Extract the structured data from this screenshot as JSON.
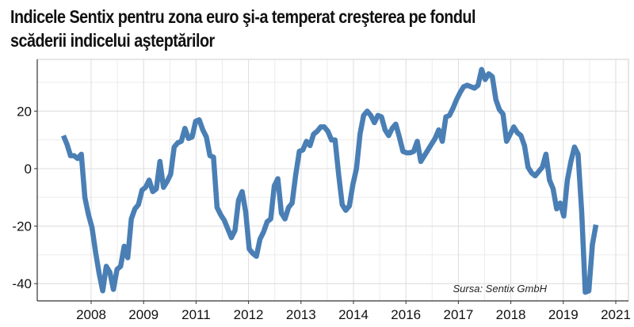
{
  "title": {
    "line1": "Indicele Sentix pentru zona euro şi-a temperat creşterea pe fondul",
    "line2": "scăderii indicelui aşteptărilor"
  },
  "source": "Sursa: Sentix GmbH",
  "colors": {
    "line": "#4a7fb5",
    "grid": "#dddddd",
    "axis": "#333333"
  },
  "chart_data": {
    "type": "line",
    "title": "Indicele Sentix pentru zona euro şi-a temperat creşterea pe fondul scăderii indicelui aşteptărilor",
    "xlabel": "",
    "ylabel": "",
    "ylim": [
      -46,
      38
    ],
    "yticks": [
      -40,
      -20,
      0,
      20
    ],
    "ytick_labels": [
      "-40",
      "-20",
      "0",
      "20"
    ],
    "xtick_labels": [
      "2008",
      "2009",
      "2011",
      "2012",
      "2013",
      "2014",
      "2016",
      "2017",
      "2018",
      "2019",
      "2021"
    ],
    "grid": true,
    "legend": "none",
    "series": [
      {
        "values": [
          11.5,
          8.5,
          4.5,
          4.5,
          3.5,
          5.0,
          -10.0,
          -16.0,
          -20.5,
          -29.0,
          -36.5,
          -42.5,
          -34.0,
          -36.0,
          -42.0,
          -35.0,
          -34.0,
          -27.0,
          -31.0,
          -17.5,
          -14.0,
          -12.5,
          -7.5,
          -6.5,
          -4.0,
          -8.0,
          -7.0,
          2.5,
          -6.5,
          -4.5,
          -2.0,
          7.5,
          9.0,
          9.5,
          14.0,
          10.5,
          11.0,
          16.5,
          17.0,
          13.5,
          11.0,
          4.5,
          4.0,
          -13.5,
          -16.0,
          -18.0,
          -21.0,
          -24.0,
          -21.5,
          -11.0,
          -8.0,
          -15.0,
          -28.0,
          -29.5,
          -30.5,
          -24.5,
          -22.0,
          -18.5,
          -17.5,
          -6.0,
          -3.5,
          -15.5,
          -17.5,
          -13.5,
          -12.0,
          -2.0,
          6.0,
          6.5,
          9.5,
          8.0,
          12.0,
          13.0,
          14.5,
          14.5,
          13.0,
          10.0,
          10.0,
          -2.0,
          -12.5,
          -14.5,
          -13.0,
          -5.5,
          0.0,
          12.0,
          18.5,
          20.0,
          18.5,
          16.0,
          18.5,
          18.0,
          13.5,
          11.5,
          14.0,
          15.5,
          11.0,
          6.0,
          5.5,
          5.5,
          6.0,
          9.5,
          2.5,
          4.5,
          6.5,
          8.5,
          10.5,
          13.5,
          9.5,
          18.0,
          18.5,
          21.0,
          24.0,
          26.5,
          28.5,
          29.0,
          28.5,
          28.0,
          29.0,
          34.5,
          31.0,
          33.0,
          32.0,
          24.0,
          20.5,
          19.0,
          9.5,
          12.0,
          14.5,
          12.5,
          11.5,
          8.0,
          0.5,
          -1.5,
          -2.5,
          -1.0,
          0.5,
          5.0,
          -4.0,
          -7.0,
          -14.0,
          -12.0,
          -16.5,
          -4.0,
          2.5,
          7.5,
          5.0,
          -15.0,
          -43.0,
          -42.5,
          -26.5,
          -19.5
        ]
      }
    ]
  }
}
